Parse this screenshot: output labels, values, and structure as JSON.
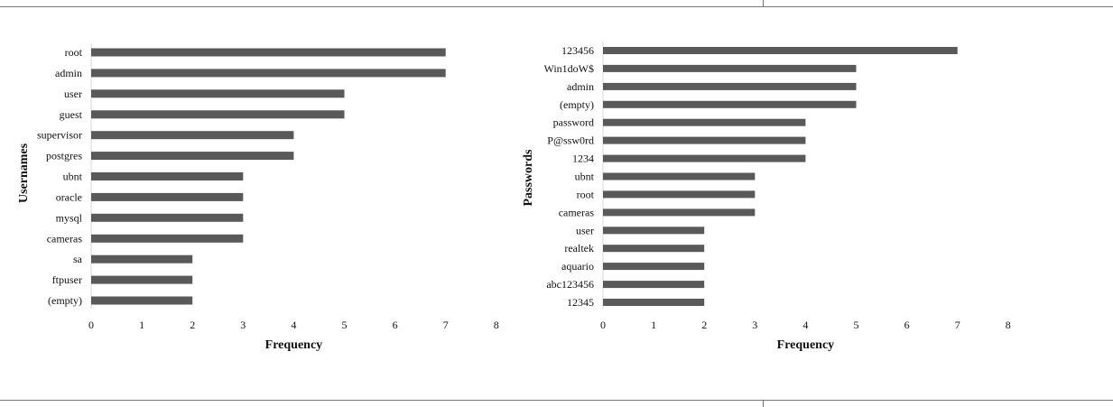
{
  "chart_data": [
    {
      "type": "bar",
      "orientation": "horizontal",
      "categories": [
        "root",
        "admin",
        "user",
        "guest",
        "supervisor",
        "postgres",
        "ubnt",
        "oracle",
        "mysql",
        "cameras",
        "sa",
        "ftpuser",
        "(empty)"
      ],
      "values": [
        7,
        7,
        5,
        5,
        4,
        4,
        3,
        3,
        3,
        3,
        2,
        2,
        2
      ],
      "title": "",
      "xlabel": "Frequency",
      "ylabel": "Usernames",
      "xlim": [
        0,
        8
      ],
      "xticks": [
        "0",
        "1",
        "2",
        "3",
        "4",
        "5",
        "6",
        "7",
        "8"
      ],
      "grid": false,
      "bar_color": "#595959"
    },
    {
      "type": "bar",
      "orientation": "horizontal",
      "categories": [
        "123456",
        "Win1doW$",
        "admin",
        "(empty)",
        "password",
        "P@ssw0rd",
        "1234",
        "ubnt",
        "root",
        "cameras",
        "user",
        "realtek",
        "aquario",
        "abc123456",
        "12345"
      ],
      "values": [
        7,
        5,
        5,
        5,
        4,
        4,
        4,
        3,
        3,
        3,
        2,
        2,
        2,
        2,
        2
      ],
      "title": "",
      "xlabel": "Frequency",
      "ylabel": "Passwords",
      "xlim": [
        0,
        8
      ],
      "xticks": [
        "0",
        "1",
        "2",
        "3",
        "4",
        "5",
        "6",
        "7",
        "8"
      ],
      "grid": false,
      "bar_color": "#595959"
    }
  ]
}
